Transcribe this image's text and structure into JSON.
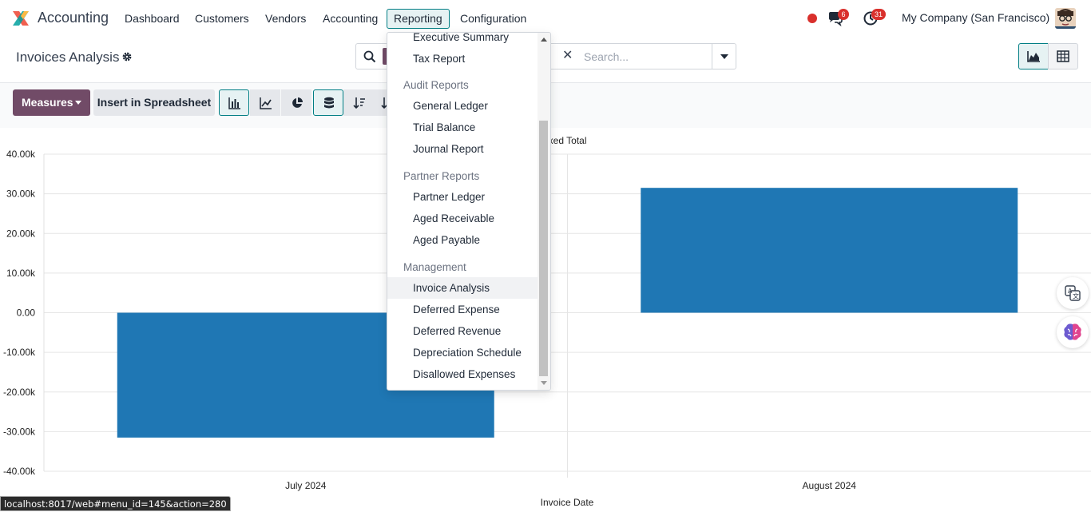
{
  "app": {
    "name": "Accounting"
  },
  "nav": {
    "items": [
      {
        "label": "Dashboard",
        "left": 147
      },
      {
        "label": "Customers",
        "left": 235
      },
      {
        "label": "Vendors",
        "left": 323
      },
      {
        "label": "Accounting",
        "left": 395
      },
      {
        "label": "Reporting",
        "left": 484
      },
      {
        "label": "Configuration",
        "left": 567
      }
    ],
    "chat_badge": "6",
    "activity_badge": "31",
    "company": "My Company (San Francisco)"
  },
  "page": {
    "title": "Invoices Analysis"
  },
  "search": {
    "placeholder": "Search...",
    "facet_tail": "s"
  },
  "toolbar": {
    "measures_label": "Measures",
    "insert_label": "Insert in Spreadsheet"
  },
  "dropdown": {
    "sections": [
      {
        "header": "",
        "items": [
          "Executive Summary",
          "Tax Report"
        ]
      },
      {
        "header": "Audit Reports",
        "items": [
          "General Ledger",
          "Trial Balance",
          "Journal Report"
        ]
      },
      {
        "header": "Partner Reports",
        "items": [
          "Partner Ledger",
          "Aged Receivable",
          "Aged Payable"
        ]
      },
      {
        "header": "Management",
        "items": [
          "Invoice Analysis",
          "Deferred Expense",
          "Deferred Revenue",
          "Depreciation Schedule",
          "Disallowed Expenses"
        ]
      }
    ],
    "highlighted": "Invoice Analysis"
  },
  "chart_data": {
    "type": "bar",
    "categories": [
      "July 2024",
      "August 2024"
    ],
    "series": [
      {
        "name": "Untaxed Total",
        "values": [
          -31500,
          31500
        ],
        "color": "#1f77b4"
      }
    ],
    "legend_visible_text": "axed Total",
    "xlabel": "Invoice Date",
    "ylabel": "",
    "ylim": [
      -40000,
      40000
    ],
    "yticks": [
      "40.00k",
      "30.00k",
      "20.00k",
      "10.00k",
      "0.00",
      "-10.00k",
      "-20.00k",
      "-30.00k",
      "-40.00k"
    ],
    "grid": true
  },
  "status_bar": {
    "url": "localhost:8017/web#menu_id=145&action=280"
  },
  "colors": {
    "brand": "#714b67",
    "accent": "#017e84",
    "bar": "#1f77b4"
  }
}
